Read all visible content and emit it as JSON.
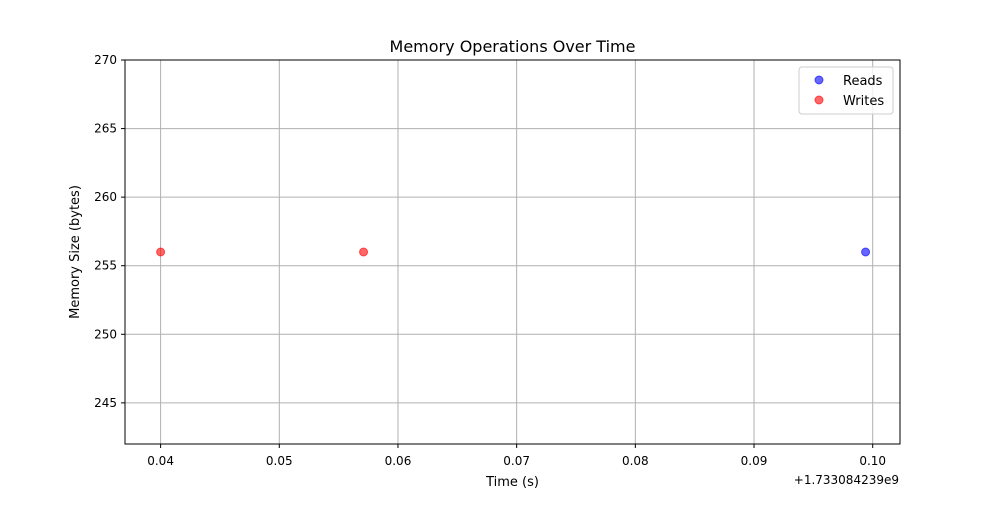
{
  "chart_data": {
    "type": "scatter",
    "title": "Memory Operations Over Time",
    "xlabel": "Time (s)",
    "ylabel": "Memory Size (bytes)",
    "x_offset_label": "+1.733084239e9",
    "xlim": [
      0.037,
      0.1023
    ],
    "ylim": [
      242,
      270
    ],
    "x_ticks": [
      0.04,
      0.05,
      0.06,
      0.07,
      0.08,
      0.09,
      0.1
    ],
    "x_tick_labels": [
      "0.04",
      "0.05",
      "0.06",
      "0.07",
      "0.08",
      "0.09",
      "0.10"
    ],
    "y_ticks": [
      245,
      250,
      255,
      260,
      265,
      270
    ],
    "y_tick_labels": [
      "245",
      "250",
      "255",
      "260",
      "265",
      "270"
    ],
    "grid": true,
    "legend_position": "top-right",
    "series": [
      {
        "name": "Reads",
        "color": "#0000ff",
        "points": [
          {
            "x": 0.0994,
            "y": 256
          }
        ]
      },
      {
        "name": "Writes",
        "color": "#ff0000",
        "points": [
          {
            "x": 0.04,
            "y": 256
          },
          {
            "x": 0.0571,
            "y": 256
          }
        ]
      }
    ]
  }
}
